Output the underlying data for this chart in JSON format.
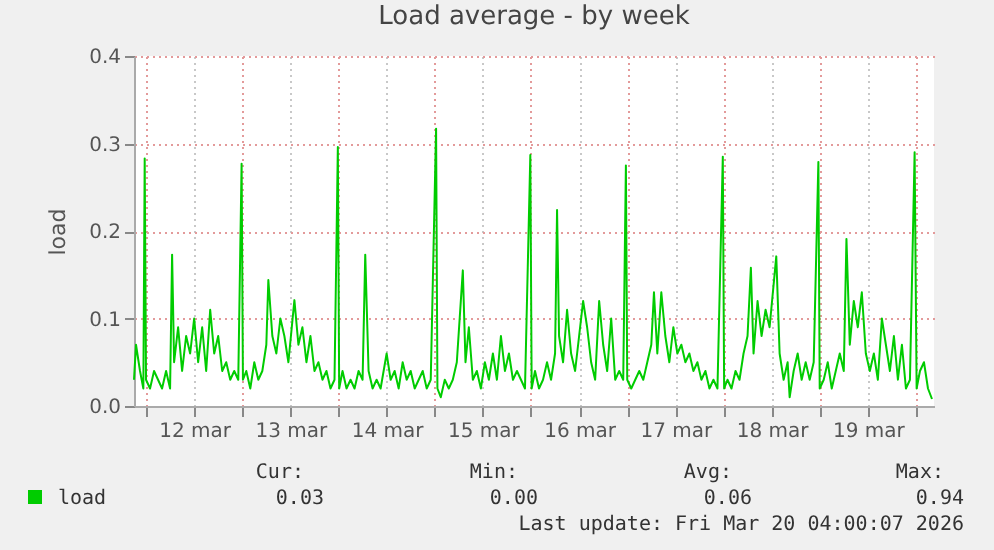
{
  "chart_data": {
    "type": "line",
    "title": "Load average - by week",
    "ylabel": "load",
    "x": [
      "2026-03-11T21:00",
      "2026-03-11T21:30",
      "2026-03-11T22:30",
      "2026-03-11T23:20",
      "2026-03-11T23:40",
      "2026-03-12T00:00",
      "2026-03-12T01:00",
      "2026-03-12T02:00",
      "2026-03-12T03:00",
      "2026-03-12T04:00",
      "2026-03-12T05:00",
      "2026-03-12T06:00",
      "2026-03-12T06:30",
      "2026-03-12T07:00",
      "2026-03-12T08:00",
      "2026-03-12T09:00",
      "2026-03-12T10:00",
      "2026-03-12T11:00",
      "2026-03-12T12:00",
      "2026-03-12T13:00",
      "2026-03-12T14:00",
      "2026-03-12T15:00",
      "2026-03-12T16:00",
      "2026-03-12T17:00",
      "2026-03-12T18:00",
      "2026-03-12T19:00",
      "2026-03-12T20:00",
      "2026-03-12T21:00",
      "2026-03-12T22:00",
      "2026-03-12T23:00",
      "2026-03-12T23:50",
      "2026-03-13T00:10",
      "2026-03-13T01:00",
      "2026-03-13T02:00",
      "2026-03-13T03:00",
      "2026-03-13T04:00",
      "2026-03-13T05:00",
      "2026-03-13T06:00",
      "2026-03-13T06:30",
      "2026-03-13T07:30",
      "2026-03-13T08:30",
      "2026-03-13T09:30",
      "2026-03-13T10:30",
      "2026-03-13T11:30",
      "2026-03-13T13:00",
      "2026-03-13T14:00",
      "2026-03-13T15:00",
      "2026-03-13T16:00",
      "2026-03-13T17:00",
      "2026-03-13T18:00",
      "2026-03-13T19:00",
      "2026-03-13T20:00",
      "2026-03-13T21:00",
      "2026-03-13T22:00",
      "2026-03-13T23:00",
      "2026-03-13T23:50",
      "2026-03-14T00:10",
      "2026-03-14T01:00",
      "2026-03-14T02:00",
      "2026-03-14T03:00",
      "2026-03-14T04:00",
      "2026-03-14T05:00",
      "2026-03-14T06:00",
      "2026-03-14T06:40",
      "2026-03-14T07:30",
      "2026-03-14T08:30",
      "2026-03-14T09:30",
      "2026-03-14T10:30",
      "2026-03-14T12:00",
      "2026-03-14T13:00",
      "2026-03-14T14:00",
      "2026-03-14T15:00",
      "2026-03-14T16:00",
      "2026-03-14T17:00",
      "2026-03-14T18:00",
      "2026-03-14T19:00",
      "2026-03-14T20:00",
      "2026-03-14T21:00",
      "2026-03-14T22:00",
      "2026-03-14T23:00",
      "2026-03-15T00:20",
      "2026-03-15T00:40",
      "2026-03-15T01:30",
      "2026-03-15T02:30",
      "2026-03-15T03:30",
      "2026-03-15T04:30",
      "2026-03-15T05:30",
      "2026-03-15T07:00",
      "2026-03-15T07:40",
      "2026-03-15T08:30",
      "2026-03-15T09:30",
      "2026-03-15T10:30",
      "2026-03-15T11:30",
      "2026-03-15T12:30",
      "2026-03-15T13:30",
      "2026-03-15T14:30",
      "2026-03-15T15:30",
      "2026-03-15T16:30",
      "2026-03-15T17:30",
      "2026-03-15T18:30",
      "2026-03-15T19:30",
      "2026-03-15T20:30",
      "2026-03-15T21:30",
      "2026-03-15T22:30",
      "2026-03-15T23:50",
      "2026-03-16T00:10",
      "2026-03-16T01:00",
      "2026-03-16T02:00",
      "2026-03-16T03:00",
      "2026-03-16T04:00",
      "2026-03-16T05:00",
      "2026-03-16T06:00",
      "2026-03-16T06:30",
      "2026-03-16T07:00",
      "2026-03-16T08:00",
      "2026-03-16T09:00",
      "2026-03-16T10:00",
      "2026-03-16T11:00",
      "2026-03-16T12:00",
      "2026-03-16T13:00",
      "2026-03-16T14:00",
      "2026-03-16T15:00",
      "2026-03-16T16:00",
      "2026-03-16T17:00",
      "2026-03-16T18:00",
      "2026-03-16T19:00",
      "2026-03-16T20:00",
      "2026-03-16T21:00",
      "2026-03-16T22:00",
      "2026-03-16T23:00",
      "2026-03-16T23:40",
      "2026-03-17T00:00",
      "2026-03-17T01:00",
      "2026-03-17T02:00",
      "2026-03-17T03:00",
      "2026-03-17T04:00",
      "2026-03-17T05:00",
      "2026-03-17T06:00",
      "2026-03-17T06:40",
      "2026-03-17T07:30",
      "2026-03-17T08:30",
      "2026-03-17T09:30",
      "2026-03-17T10:30",
      "2026-03-17T11:30",
      "2026-03-17T12:30",
      "2026-03-17T13:30",
      "2026-03-17T14:30",
      "2026-03-17T15:30",
      "2026-03-17T16:30",
      "2026-03-17T17:30",
      "2026-03-17T18:30",
      "2026-03-17T19:30",
      "2026-03-17T20:30",
      "2026-03-17T21:30",
      "2026-03-17T22:30",
      "2026-03-17T23:50",
      "2026-03-18T00:10",
      "2026-03-18T01:00",
      "2026-03-18T02:00",
      "2026-03-18T03:00",
      "2026-03-18T04:00",
      "2026-03-18T05:00",
      "2026-03-18T06:00",
      "2026-03-18T06:50",
      "2026-03-18T07:30",
      "2026-03-18T08:30",
      "2026-03-18T09:30",
      "2026-03-18T10:30",
      "2026-03-18T11:30",
      "2026-03-18T13:10",
      "2026-03-18T14:00",
      "2026-03-18T15:00",
      "2026-03-18T16:00",
      "2026-03-18T16:30",
      "2026-03-18T17:30",
      "2026-03-18T18:30",
      "2026-03-18T19:30",
      "2026-03-18T20:30",
      "2026-03-18T21:30",
      "2026-03-18T22:30",
      "2026-03-18T23:40",
      "2026-03-19T00:00",
      "2026-03-19T01:00",
      "2026-03-19T02:00",
      "2026-03-19T03:00",
      "2026-03-19T04:00",
      "2026-03-19T05:00",
      "2026-03-19T06:00",
      "2026-03-19T06:40",
      "2026-03-19T07:30",
      "2026-03-19T08:30",
      "2026-03-19T09:30",
      "2026-03-19T10:30",
      "2026-03-19T11:30",
      "2026-03-19T12:30",
      "2026-03-19T13:30",
      "2026-03-19T14:30",
      "2026-03-19T15:30",
      "2026-03-19T16:30",
      "2026-03-19T17:30",
      "2026-03-19T18:30",
      "2026-03-19T19:30",
      "2026-03-19T20:30",
      "2026-03-19T21:30",
      "2026-03-19T22:30",
      "2026-03-19T23:40",
      "2026-03-20T00:10",
      "2026-03-20T01:00",
      "2026-03-20T02:00",
      "2026-03-20T03:00",
      "2026-03-20T04:00"
    ],
    "series": [
      {
        "name": "load",
        "color": "#00cc00",
        "values": [
          0.03,
          0.07,
          0.04,
          0.02,
          0.283,
          0.03,
          0.02,
          0.04,
          0.03,
          0.02,
          0.04,
          0.02,
          0.173,
          0.05,
          0.09,
          0.04,
          0.08,
          0.06,
          0.1,
          0.05,
          0.09,
          0.04,
          0.11,
          0.06,
          0.08,
          0.04,
          0.05,
          0.03,
          0.04,
          0.03,
          0.277,
          0.03,
          0.04,
          0.02,
          0.05,
          0.03,
          0.04,
          0.07,
          0.144,
          0.08,
          0.06,
          0.1,
          0.08,
          0.05,
          0.121,
          0.07,
          0.09,
          0.05,
          0.08,
          0.04,
          0.05,
          0.03,
          0.04,
          0.02,
          0.03,
          0.296,
          0.02,
          0.04,
          0.02,
          0.03,
          0.02,
          0.04,
          0.03,
          0.173,
          0.04,
          0.02,
          0.03,
          0.02,
          0.06,
          0.03,
          0.04,
          0.02,
          0.05,
          0.03,
          0.04,
          0.02,
          0.03,
          0.04,
          0.02,
          0.03,
          0.317,
          0.02,
          0.01,
          0.03,
          0.02,
          0.03,
          0.05,
          0.155,
          0.05,
          0.09,
          0.03,
          0.04,
          0.02,
          0.05,
          0.03,
          0.06,
          0.03,
          0.08,
          0.04,
          0.06,
          0.03,
          0.04,
          0.03,
          0.02,
          0.287,
          0.02,
          0.04,
          0.02,
          0.03,
          0.05,
          0.03,
          0.06,
          0.224,
          0.08,
          0.05,
          0.11,
          0.06,
          0.04,
          0.08,
          0.12,
          0.09,
          0.05,
          0.03,
          0.12,
          0.07,
          0.04,
          0.1,
          0.03,
          0.04,
          0.03,
          0.275,
          0.03,
          0.02,
          0.03,
          0.04,
          0.03,
          0.05,
          0.07,
          0.13,
          0.06,
          0.13,
          0.08,
          0.05,
          0.09,
          0.06,
          0.07,
          0.05,
          0.06,
          0.04,
          0.05,
          0.03,
          0.04,
          0.02,
          0.03,
          0.02,
          0.285,
          0.02,
          0.03,
          0.02,
          0.04,
          0.03,
          0.06,
          0.08,
          0.158,
          0.06,
          0.12,
          0.08,
          0.11,
          0.09,
          0.171,
          0.06,
          0.03,
          0.05,
          0.01,
          0.04,
          0.06,
          0.03,
          0.05,
          0.03,
          0.05,
          0.279,
          0.02,
          0.03,
          0.05,
          0.02,
          0.04,
          0.06,
          0.04,
          0.191,
          0.07,
          0.12,
          0.09,
          0.13,
          0.06,
          0.04,
          0.06,
          0.03,
          0.1,
          0.07,
          0.04,
          0.08,
          0.03,
          0.07,
          0.02,
          0.03,
          0.29,
          0.02,
          0.04,
          0.05,
          0.02,
          0.008
        ]
      }
    ],
    "xlim": [
      "2026-03-11T21:00",
      "2026-03-20T04:30"
    ],
    "xticks": [
      {
        "value": "2026-03-12T00:00",
        "label": null
      },
      {
        "value": "2026-03-12T12:00",
        "label": "12 mar"
      },
      {
        "value": "2026-03-13T00:00",
        "label": null
      },
      {
        "value": "2026-03-13T12:00",
        "label": "13 mar"
      },
      {
        "value": "2026-03-14T00:00",
        "label": null
      },
      {
        "value": "2026-03-14T12:00",
        "label": "14 mar"
      },
      {
        "value": "2026-03-15T00:00",
        "label": null
      },
      {
        "value": "2026-03-15T12:00",
        "label": "15 mar"
      },
      {
        "value": "2026-03-16T00:00",
        "label": null
      },
      {
        "value": "2026-03-16T12:00",
        "label": "16 mar"
      },
      {
        "value": "2026-03-17T00:00",
        "label": null
      },
      {
        "value": "2026-03-17T12:00",
        "label": "17 mar"
      },
      {
        "value": "2026-03-18T00:00",
        "label": null
      },
      {
        "value": "2026-03-18T12:00",
        "label": "18 mar"
      },
      {
        "value": "2026-03-19T00:00",
        "label": null
      },
      {
        "value": "2026-03-19T12:00",
        "label": "19 mar"
      },
      {
        "value": "2026-03-20T00:00",
        "label": null
      }
    ],
    "ylim": [
      0,
      0.4
    ],
    "yticks": [
      {
        "value": 0,
        "label": "0.0"
      },
      {
        "value": 0.1,
        "label": "0.1"
      },
      {
        "value": 0.2,
        "label": "0.2"
      },
      {
        "value": 0.3,
        "label": "0.3"
      },
      {
        "value": 0.4,
        "label": "0.4"
      }
    ],
    "grid": true,
    "legend": "bottom left",
    "annotations": [
      "Cur:",
      "0.03",
      "Min:",
      "0.00",
      "Avg:",
      "0.06",
      "Max:",
      "0.94",
      "Last update: Fri Mar 20 04:00:07 2026"
    ]
  }
}
